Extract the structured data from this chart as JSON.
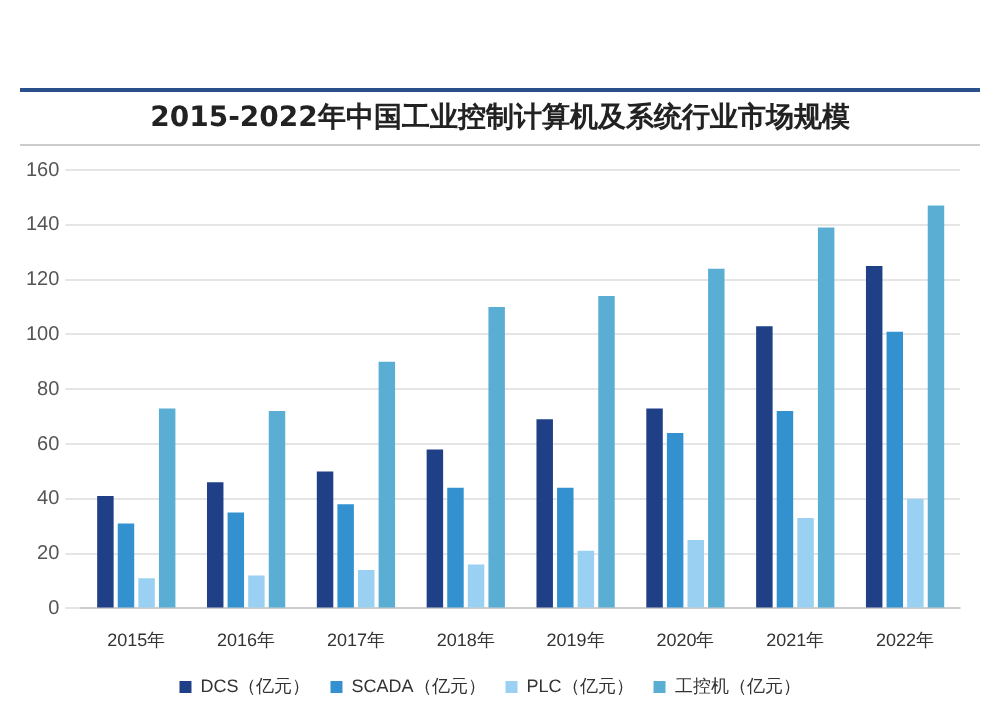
{
  "chart_data": {
    "type": "bar",
    "title": "2015-2022年中国工业控制计算机及系统行业市场规模",
    "categories": [
      "2015年",
      "2016年",
      "2017年",
      "2018年",
      "2019年",
      "2020年",
      "2021年",
      "2022年"
    ],
    "series": [
      {
        "name": "DCS（亿元）",
        "color": "#1f3f86",
        "values": [
          41,
          46,
          50,
          58,
          69,
          73,
          103,
          125
        ]
      },
      {
        "name": "SCADA（亿元）",
        "color": "#3391d0",
        "values": [
          31,
          35,
          38,
          44,
          44,
          64,
          72,
          101
        ]
      },
      {
        "name": "PLC（亿元）",
        "color": "#9ad0f2",
        "values": [
          11,
          12,
          14,
          16,
          21,
          25,
          33,
          40
        ]
      },
      {
        "name": "工控机（亿元）",
        "color": "#5aaed4",
        "values": [
          73,
          72,
          90,
          110,
          114,
          124,
          139,
          147
        ]
      }
    ],
    "ylim": [
      0,
      160
    ],
    "yticks": [
      0,
      20,
      40,
      60,
      80,
      100,
      120,
      140,
      160
    ],
    "grid": "y",
    "legend": "bottom"
  }
}
